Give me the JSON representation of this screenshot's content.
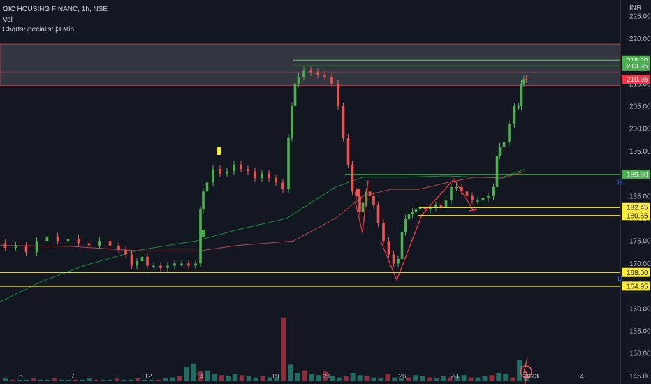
{
  "header": {
    "line1": "GIC HOUSING FINANC, 1h, NSE",
    "line2": "Vol",
    "line3": "ChartsSpecialist |3 Min"
  },
  "chart_data": {
    "type": "candlestick",
    "currency": "INR",
    "y_ticks": [
      225,
      220,
      215,
      210,
      205,
      200,
      195,
      190,
      185,
      180,
      175,
      170,
      165,
      160,
      155,
      150,
      145
    ],
    "y_tick_labels": [
      "225.00",
      "220.00",
      "215.00",
      "210.00",
      "205.00",
      "200.00",
      "195.00",
      "190.00",
      "185.00",
      "180.00",
      "175.00",
      "170.00",
      "165.00",
      "160.00",
      "155.00",
      "150.00",
      "145.00"
    ],
    "x_ticks": [
      "5",
      "7",
      "12",
      "14",
      "19",
      "21",
      "26",
      "28",
      "2023",
      "4"
    ],
    "ylim": [
      143.2,
      228.6
    ],
    "resistance_zone": [
      209.6,
      218.8
    ],
    "horizontal_levels": [
      {
        "value": 215.2,
        "label": "215.20",
        "color": "#4caf50",
        "tag_text": "#ffffff"
      },
      {
        "value": 213.95,
        "label": "213.95",
        "color": "#4caf50",
        "tag_text": "#ffffff"
      },
      {
        "value": 189.8,
        "label": "189.80",
        "color": "#4caf50",
        "tag_text": "#ffffff"
      },
      {
        "value": 182.45,
        "label": "182.45",
        "color": "#ffeb3b",
        "tag_text": "#131722"
      },
      {
        "value": 180.65,
        "label": "180.65",
        "color": "#ffeb3b",
        "tag_text": "#131722"
      },
      {
        "value": 168.0,
        "label": "168.00",
        "color": "#ffeb3b",
        "tag_text": "#131722"
      },
      {
        "value": 164.95,
        "label": "164.95",
        "color": "#ffeb3b",
        "tag_text": "#131722"
      }
    ],
    "last_price": {
      "value": 210.95,
      "label": "210.95",
      "color": "#f23645"
    },
    "price_path": [
      [
        0,
        174.5
      ],
      [
        15,
        173.5
      ],
      [
        30,
        174
      ],
      [
        45,
        172.5
      ],
      [
        60,
        175
      ],
      [
        75,
        176
      ],
      [
        90,
        175
      ],
      [
        105,
        175.5
      ],
      [
        120,
        174.5
      ],
      [
        135,
        174
      ],
      [
        150,
        175
      ],
      [
        165,
        174
      ],
      [
        175,
        173
      ],
      [
        185,
        172
      ],
      [
        192,
        169.5
      ],
      [
        200,
        170.5
      ],
      [
        207,
        171.5
      ],
      [
        215,
        169.5
      ],
      [
        225,
        169.5
      ],
      [
        235,
        169
      ],
      [
        245,
        169.5
      ],
      [
        255,
        170
      ],
      [
        265,
        170
      ],
      [
        275,
        169.5
      ],
      [
        285,
        170
      ],
      [
        289,
        182
      ],
      [
        293,
        186
      ],
      [
        300,
        188
      ],
      [
        310,
        191
      ],
      [
        320,
        190
      ],
      [
        330,
        190.5
      ],
      [
        340,
        192
      ],
      [
        350,
        191
      ],
      [
        360,
        190.5
      ],
      [
        370,
        189
      ],
      [
        380,
        190
      ],
      [
        390,
        189
      ],
      [
        400,
        188
      ],
      [
        410,
        186.5
      ],
      [
        416,
        198
      ],
      [
        420,
        205
      ],
      [
        425,
        210
      ],
      [
        430,
        211.5
      ],
      [
        440,
        213
      ],
      [
        450,
        212.5
      ],
      [
        460,
        212
      ],
      [
        470,
        211.5
      ],
      [
        480,
        210
      ],
      [
        488,
        205
      ],
      [
        495,
        198
      ],
      [
        502,
        192
      ],
      [
        507,
        186
      ],
      [
        513,
        185
      ],
      [
        517,
        181.5
      ],
      [
        522,
        183.5
      ],
      [
        527,
        186
      ],
      [
        532,
        185
      ],
      [
        538,
        183
      ],
      [
        545,
        179
      ],
      [
        553,
        175
      ],
      [
        560,
        172
      ],
      [
        567,
        170
      ],
      [
        573,
        171
      ],
      [
        578,
        177
      ],
      [
        583,
        180
      ],
      [
        588,
        181
      ],
      [
        593,
        181.5
      ],
      [
        598,
        182
      ],
      [
        605,
        182.5
      ],
      [
        612,
        182
      ],
      [
        620,
        182.5
      ],
      [
        628,
        183
      ],
      [
        635,
        182.5
      ],
      [
        642,
        184
      ],
      [
        650,
        187
      ],
      [
        657,
        187
      ],
      [
        665,
        186
      ],
      [
        672,
        185
      ],
      [
        680,
        184
      ],
      [
        688,
        184
      ],
      [
        695,
        184.5
      ],
      [
        703,
        185
      ],
      [
        710,
        187
      ],
      [
        713,
        194
      ],
      [
        718,
        196
      ],
      [
        725,
        197
      ],
      [
        733,
        201
      ],
      [
        740,
        205
      ],
      [
        745,
        205
      ],
      [
        748,
        210
      ],
      [
        752,
        211
      ],
      [
        755,
        210.95
      ]
    ],
    "pattern_lines": [
      [
        [
          509,
          183.5
        ],
        [
          519,
          176.8
        ],
        [
          527,
          188.5
        ]
      ],
      [
        [
          545,
          175
        ],
        [
          568,
          166.3
        ],
        [
          604,
          180.8
        ],
        [
          650,
          188.8
        ],
        [
          678,
          181.7
        ]
      ],
      [
        [
          671,
          181.7
        ],
        [
          683,
          182
        ]
      ]
    ],
    "volume": [
      2,
      1,
      1,
      1,
      2,
      1,
      1,
      2,
      1,
      1,
      1,
      1,
      2,
      1,
      1,
      1,
      2,
      1,
      1,
      2,
      1,
      1,
      1,
      2,
      3,
      4,
      12,
      15,
      8,
      9,
      6,
      5,
      4,
      6,
      5,
      4,
      3,
      4,
      3,
      3,
      55,
      14,
      7,
      9,
      6,
      5,
      8,
      4,
      3,
      4,
      7,
      5,
      4,
      3,
      2,
      6,
      3,
      2,
      3,
      5,
      4,
      3,
      2,
      4,
      3,
      4,
      5,
      3,
      3,
      4,
      5,
      7,
      6,
      3,
      18,
      4
    ]
  },
  "markers": {
    "h_label": "H",
    "d_label": "D"
  }
}
